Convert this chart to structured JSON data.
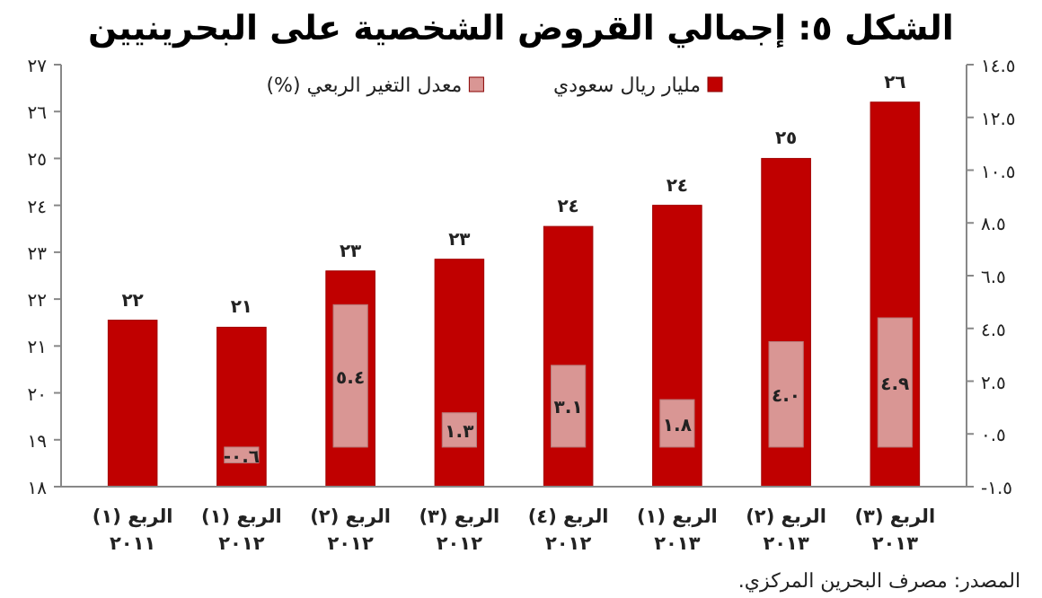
{
  "chart_data": {
    "type": "bar",
    "title": "الشكل ٥: إجمالي القروض الشخصية على البحرينيين",
    "categories": [
      "الربع (١)\n٢٠١١",
      "الربع (١)\n٢٠١٢",
      "الربع (٢)\n٢٠١٢",
      "الربع (٣)\n٢٠١٢",
      "الربع (٤)\n٢٠١٢",
      "الربع (١)\n٢٠١٣",
      "الربع (٢)\n٢٠١٣",
      "الربع (٣)\n٢٠١٣"
    ],
    "series": [
      {
        "name": "مليار ريال سعودي",
        "color": "#c00000",
        "values": [
          21.55,
          21.4,
          22.6,
          22.85,
          23.55,
          24.0,
          25.0,
          26.2
        ],
        "value_labels": [
          "٢٢",
          "٢١",
          "٢٣",
          "٢٣",
          "٢٤",
          "٢٤",
          "٢٥",
          "٢٦"
        ]
      },
      {
        "name": "معدل التغير الربعي (%)",
        "color": "#d99694",
        "axis": "y2",
        "values": [
          null,
          -0.6,
          5.4,
          1.3,
          3.1,
          1.8,
          4.0,
          4.9
        ],
        "value_labels": [
          null,
          "-٠.٦",
          "٥.٤",
          "١.٣",
          "٣.١",
          "١.٨",
          "٤.٠",
          "٤.٩"
        ]
      }
    ],
    "ylim": [
      18,
      27
    ],
    "yticks": [
      {
        "value": 18,
        "label": "١٨"
      },
      {
        "value": 19,
        "label": "١٩"
      },
      {
        "value": 20,
        "label": "٢٠"
      },
      {
        "value": 21,
        "label": "٢١"
      },
      {
        "value": 22,
        "label": "٢٢"
      },
      {
        "value": 23,
        "label": "٢٣"
      },
      {
        "value": 24,
        "label": "٢٤"
      },
      {
        "value": 25,
        "label": "٢٥"
      },
      {
        "value": 26,
        "label": "٢٦"
      },
      {
        "value": 27,
        "label": "٢٧"
      }
    ],
    "y2lim": [
      -1.5,
      14.5
    ],
    "y2ticks": [
      {
        "value": -1.5,
        "label": "-١.٥"
      },
      {
        "value": 0.5,
        "label": "٠.٥"
      },
      {
        "value": 2.5,
        "label": "٢.٥"
      },
      {
        "value": 4.5,
        "label": "٤.٥"
      },
      {
        "value": 6.5,
        "label": "٦.٥"
      },
      {
        "value": 8.5,
        "label": "٨.٥"
      },
      {
        "value": 10.5,
        "label": "١٠.٥"
      },
      {
        "value": 12.5,
        "label": "١٢.٥"
      },
      {
        "value": 14.5,
        "label": "١٤.٥"
      }
    ],
    "legend": "top",
    "grid": false,
    "annotations": [
      "المصدر: مصرف البحرين المركزي."
    ]
  }
}
